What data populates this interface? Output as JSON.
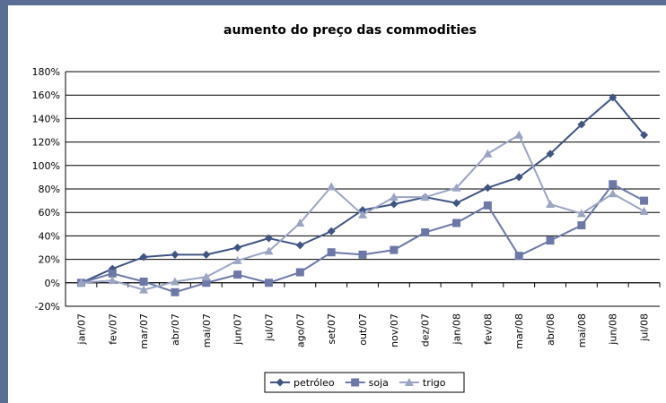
{
  "chart_data": {
    "type": "line",
    "title": "aumento do preço das commodities",
    "categories": [
      "jan/07",
      "fev/07",
      "mar/07",
      "abr/07",
      "mai/07",
      "jun/07",
      "jul/07",
      "ago/07",
      "set/07",
      "out/07",
      "nov/07",
      "dez/07",
      "jan/08",
      "fev/08",
      "mar/08",
      "abr/08",
      "mai/08",
      "jun/08",
      "jul/08"
    ],
    "series": [
      {
        "name": "petróleo",
        "color": "#3f5584",
        "marker": "diamond",
        "values": [
          0,
          12,
          22,
          24,
          24,
          30,
          38,
          32,
          44,
          62,
          67,
          73,
          68,
          81,
          90,
          110,
          135,
          158,
          126
        ]
      },
      {
        "name": "soja",
        "color": "#6b78a8",
        "marker": "square",
        "values": [
          0,
          8,
          1,
          -8,
          0,
          7,
          0,
          9,
          26,
          24,
          28,
          43,
          51,
          66,
          23,
          36,
          49,
          84,
          70
        ]
      },
      {
        "name": "trigo",
        "color": "#9aa5c4",
        "marker": "triangle",
        "values": [
          0,
          2,
          -6,
          1,
          5,
          19,
          27,
          51,
          82,
          58,
          73,
          73,
          81,
          110,
          126,
          67,
          59,
          76,
          61
        ]
      }
    ],
    "ylim": [
      -20,
      180
    ],
    "yticks": [
      {
        "value": -20,
        "label": "-20%"
      },
      {
        "value": 0,
        "label": "0%"
      },
      {
        "value": 20,
        "label": "20%"
      },
      {
        "value": 40,
        "label": "40%"
      },
      {
        "value": 60,
        "label": "60%"
      },
      {
        "value": 80,
        "label": "80%"
      },
      {
        "value": 100,
        "label": "100%"
      },
      {
        "value": 120,
        "label": "120%"
      },
      {
        "value": 140,
        "label": "140%"
      },
      {
        "value": 160,
        "label": "160%"
      },
      {
        "value": 180,
        "label": "180%"
      }
    ],
    "grid": true,
    "legend": "bottom"
  }
}
